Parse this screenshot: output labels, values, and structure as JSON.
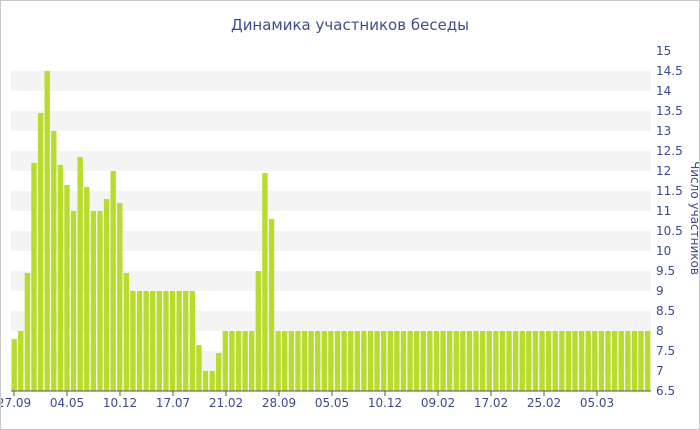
{
  "chart_data": {
    "type": "bar",
    "title": "Динамика участников беседы",
    "ylabel": "Число участников",
    "xlabel": "",
    "ylim": [
      6.5,
      15
    ],
    "y_ticks": [
      "15",
      "14.5",
      "14",
      "13.5",
      "13",
      "12.5",
      "12",
      "11.5",
      "11",
      "10.5",
      "10",
      "9.5",
      "9",
      "8.5",
      "8",
      "7.5",
      "7",
      "6.5"
    ],
    "x_ticks": [
      "27.09",
      "04.05",
      "10.12",
      "17.07",
      "21.02",
      "28.09",
      "05.05",
      "10.12",
      "09.02",
      "17.02",
      "25.02",
      "05.03"
    ],
    "bar_color": "#b8dc2e",
    "band_color": "#f4f4f4",
    "values": [
      7.8,
      8,
      9.45,
      12.2,
      13.45,
      14.5,
      13,
      12.15,
      11.65,
      11,
      12.35,
      11.6,
      11,
      11,
      11.3,
      12,
      11.2,
      9.45,
      9,
      9,
      9,
      9,
      9,
      9,
      9,
      9,
      9,
      9,
      7.65,
      7,
      7,
      7.45,
      8,
      8,
      8,
      8,
      8,
      9.5,
      11.95,
      10.8,
      8,
      8,
      8,
      8,
      8,
      8,
      8,
      8,
      8,
      8,
      8,
      8,
      8,
      8,
      8,
      8,
      8,
      8,
      8,
      8,
      8,
      8,
      8,
      8,
      8,
      8,
      8,
      8,
      8,
      8,
      8,
      8,
      8,
      8,
      8,
      8,
      8,
      8,
      8,
      8,
      8,
      8,
      8,
      8,
      8,
      8,
      8,
      8,
      8,
      8,
      8,
      8,
      8,
      8,
      8,
      8,
      8
    ]
  }
}
